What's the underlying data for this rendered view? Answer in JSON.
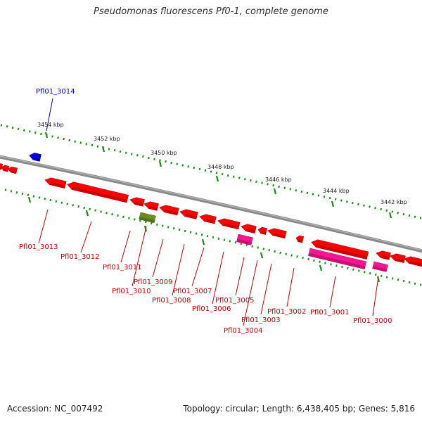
{
  "title": "Pseudomonas fluorescens Pf0-1, complete genome",
  "footer": {
    "accession": "Accession: NC_007492",
    "summary": "Topology: circular; Length: 6,438,405 bp; Genes: 5,816"
  },
  "colors": {
    "backbone": "#8a8a8a",
    "tick": "#1a8a1a",
    "gene_red": "#ff0000",
    "gene_magenta": "#ff1493",
    "gene_olive": "#6b8e23",
    "gene_blue": "#0000dd",
    "label_red": "#cc0000",
    "label_blue": "#0000cc"
  },
  "ruler_labels": [
    "3454 kbp",
    "3452 kbp",
    "3450 kbp",
    "3448 kbp",
    "3446 kbp",
    "3444 kbp",
    "3442 kbp"
  ],
  "genes": [
    {
      "id": "Pfl01_3014",
      "color": "blue"
    },
    {
      "id": "Pfl01_3013",
      "color": "red"
    },
    {
      "id": "Pfl01_3012",
      "color": "red"
    },
    {
      "id": "Pfl01_3011",
      "color": "red"
    },
    {
      "id": "Pfl01_3010",
      "color": "olive"
    },
    {
      "id": "Pfl01_3009",
      "color": "red"
    },
    {
      "id": "Pfl01_3008",
      "color": "red"
    },
    {
      "id": "Pfl01_3007",
      "color": "red"
    },
    {
      "id": "Pfl01_3006",
      "color": "red"
    },
    {
      "id": "Pfl01_3005",
      "color": "magenta"
    },
    {
      "id": "Pfl01_3004",
      "color": "red"
    },
    {
      "id": "Pfl01_3003",
      "color": "red"
    },
    {
      "id": "Pfl01_3002",
      "color": "red"
    },
    {
      "id": "Pfl01_3001",
      "color": "magenta"
    },
    {
      "id": "Pfl01_3000",
      "color": "magenta"
    }
  ]
}
